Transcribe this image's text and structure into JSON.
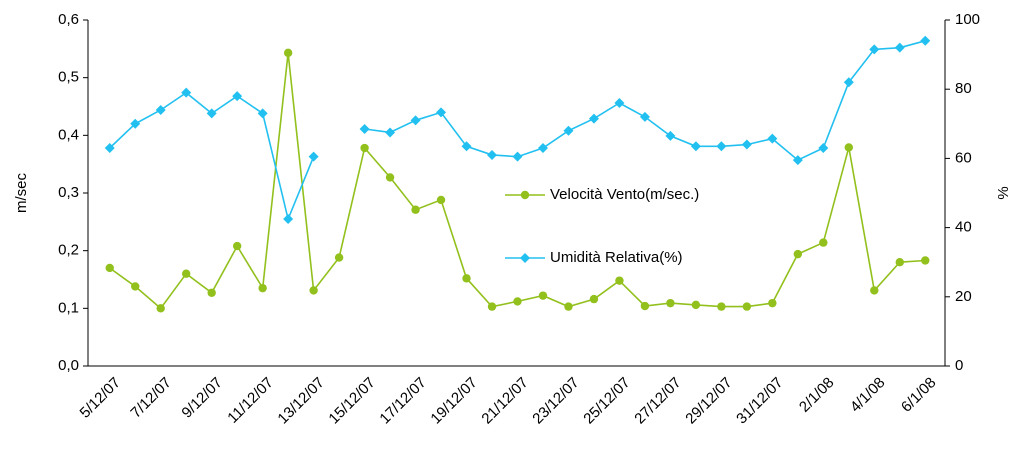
{
  "chart_data": {
    "type": "line",
    "y_label": "m/sec",
    "y2_label": "%",
    "categories": [
      "5/12/07",
      null,
      "7/12/07",
      null,
      "9/12/07",
      null,
      "11/12/07",
      null,
      "13/12/07",
      null,
      "15/12/07",
      null,
      "17/12/07",
      null,
      "19/12/07",
      null,
      "21/12/07",
      null,
      "23/12/07",
      null,
      "25/12/07",
      null,
      "27/12/07",
      null,
      "29/12/07",
      null,
      "31/12/07",
      null,
      "2/1/08",
      null,
      "4/1/08",
      null,
      "6/1/08"
    ],
    "series": [
      {
        "name": "Velocità Vento(m/sec.)",
        "color": "#92c01c",
        "marker": "circle",
        "values": [
          0.17,
          0.138,
          0.1,
          0.16,
          0.127,
          0.208,
          0.135,
          0.543,
          0.131,
          0.188,
          0.378,
          0.327,
          0.271,
          0.288,
          0.152,
          0.103,
          0.112,
          0.122,
          0.103,
          0.116,
          0.148,
          0.104,
          0.109,
          0.106,
          0.103,
          0.103,
          0.109,
          0.194,
          0.214,
          0.379,
          0.131,
          0.18,
          0.183
        ]
      },
      {
        "name": "Umidità Relativa(%)",
        "color": "#22c0f0",
        "marker": "diamond",
        "axis": "y2",
        "values": [
          63,
          70,
          74,
          79,
          73,
          78,
          73,
          42.5,
          60.5,
          null,
          68.5,
          67.5,
          71,
          73.3,
          63.5,
          61,
          60.5,
          63,
          68,
          71.5,
          76,
          72,
          66.5,
          63.5,
          63.5,
          64,
          65.7,
          59.5,
          63,
          82,
          91.5,
          92,
          94
        ]
      }
    ],
    "ylim": [
      0,
      0.6
    ],
    "yticks": [
      {
        "value": 0,
        "label": "0,0"
      },
      {
        "value": 0.1,
        "label": "0,1"
      },
      {
        "value": 0.2,
        "label": "0,2"
      },
      {
        "value": 0.3,
        "label": "0,3"
      },
      {
        "value": 0.4,
        "label": "0,4"
      },
      {
        "value": 0.5,
        "label": "0,5"
      },
      {
        "value": 0.6,
        "label": "0,6"
      }
    ],
    "y2lim": [
      0,
      100
    ],
    "y2ticks": [
      0,
      20,
      40,
      60,
      80,
      100
    ],
    "grid": false,
    "legend": "center"
  }
}
